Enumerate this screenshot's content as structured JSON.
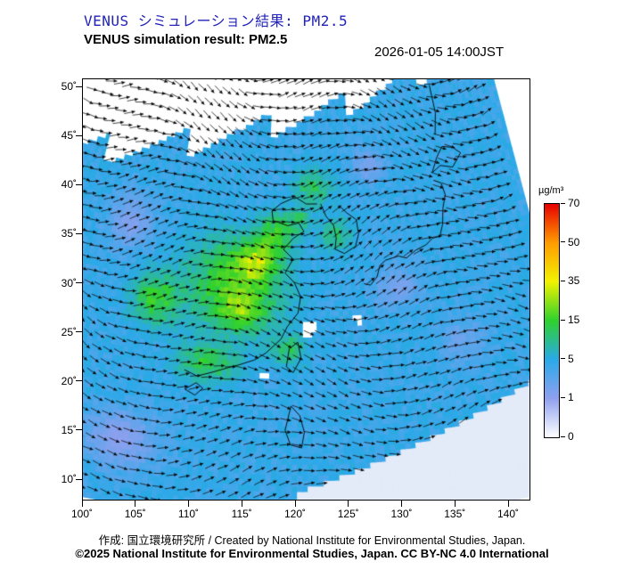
{
  "header": {
    "title_jp": "VENUS シミュレーション結果: PM2.5",
    "title_en": "VENUS simulation result: PM2.5",
    "timestamp": "2026-01-05 14:00JST"
  },
  "footer": {
    "credit_line1": "作成:  国立環境研究所 / Created by National Institute for Environmental Studies, Japan.",
    "credit_line2": "©2025 National Institute for Environmental Studies, Japan. CC BY-NC 4.0 International"
  },
  "colorbar": {
    "unit_label": "µg/m³",
    "tick_labels": [
      "0",
      "1",
      "5",
      "15",
      "35",
      "50",
      "70"
    ],
    "stops": [
      {
        "value": 0,
        "color": "#ffffff"
      },
      {
        "value": 1,
        "color": "#8fa0ef"
      },
      {
        "value": 5,
        "color": "#2aa9e8"
      },
      {
        "value": 15,
        "color": "#2ed12e"
      },
      {
        "value": 35,
        "color": "#f2f200"
      },
      {
        "value": 50,
        "color": "#ff9c00"
      },
      {
        "value": 70,
        "color": "#e60000"
      }
    ]
  },
  "axes": {
    "lat_tick_labels": [
      "50˚",
      "45˚",
      "40˚",
      "35˚",
      "30˚",
      "25˚",
      "20˚",
      "15˚",
      "10˚"
    ],
    "lon_tick_labels": [
      "100˚",
      "105˚",
      "110˚",
      "115˚",
      "120˚",
      "125˚",
      "130˚",
      "135˚",
      "140˚"
    ]
  },
  "chart_data": {
    "type": "heatmap",
    "title": "VENUS simulation result: PM2.5",
    "variable": "PM2.5 surface concentration",
    "units": "µg/m³",
    "valid_time": "2026-01-05 14:00JST",
    "lon_range": [
      100,
      145
    ],
    "lat_range": [
      10,
      50
    ],
    "projection": "lambert_conformal_conic",
    "colorscale_values": [
      0,
      1,
      5,
      15,
      35,
      50,
      70
    ],
    "field": {
      "background": 4.5,
      "plumes": [
        [
          113.5,
          31,
          5.5,
          4.5,
          13
        ],
        [
          116,
          33.5,
          2.2,
          1.8,
          20
        ],
        [
          114.5,
          28.5,
          2.2,
          1.8,
          13
        ],
        [
          118.5,
          36.5,
          2.2,
          1.8,
          11
        ],
        [
          104,
          28.5,
          2.6,
          2.4,
          11
        ],
        [
          111,
          22.5,
          3.2,
          1.8,
          9
        ],
        [
          120.5,
          24.5,
          1.8,
          1.5,
          7
        ],
        [
          123.5,
          41.5,
          2.6,
          1.8,
          7
        ],
        [
          126.5,
          36.5,
          2.0,
          1.6,
          6
        ],
        [
          121.5,
          38.2,
          1.6,
          1.2,
          7
        ],
        [
          102.5,
          13.5,
          4,
          3,
          -3.3
        ],
        [
          134,
          30.5,
          3,
          2.2,
          -2.6
        ],
        [
          131.5,
          43.5,
          2.4,
          1.8,
          -2.8
        ],
        [
          141,
          24,
          3,
          2.5,
          -2
        ],
        [
          99,
          36,
          3,
          3,
          -3
        ]
      ],
      "clear_spots": [
        [
          122.8,
          26.6,
          0.9
        ],
        [
          117.6,
          21.6,
          0.6
        ],
        [
          128.8,
          27.4,
          0.5
        ]
      ],
      "no_data_above": "lat > 44 + 0.2*(lon-99), jagged blocky edge (white)",
      "no_data_corner": "lat < 9.2 + 0.34*(lon-121) for lon > 121 (pale, no vectors)"
    },
    "wind": {
      "overlay": "arrows",
      "direction": "predominantly westerly, meandering northeastward",
      "grid_step_deg": 1.3,
      "params": {
        "a1": 0.4,
        "k1": 0.22,
        "k2": 0.12,
        "a2": 0.18,
        "k3": 0.25,
        "jitter": 0.25
      }
    },
    "coastlines": [
      [
        [
          108.5,
          21.5
        ],
        [
          110,
          21
        ],
        [
          111.8,
          21.6
        ],
        [
          113.5,
          22.2
        ],
        [
          114.8,
          22.6
        ],
        [
          116.5,
          23.2
        ],
        [
          117.8,
          24
        ],
        [
          119.5,
          25.5
        ],
        [
          120.2,
          26.8
        ],
        [
          121.5,
          28.3
        ],
        [
          121.8,
          30
        ],
        [
          121,
          31.5
        ],
        [
          119.8,
          32.5
        ],
        [
          120.8,
          34
        ],
        [
          119.5,
          35
        ],
        [
          120.8,
          36.2
        ],
        [
          122.2,
          36.9
        ],
        [
          121.5,
          37.8
        ],
        [
          120,
          37.5
        ],
        [
          118,
          38
        ],
        [
          117.8,
          39
        ],
        [
          119,
          39.8
        ],
        [
          121,
          40.5
        ],
        [
          122.5,
          39.8
        ],
        [
          124,
          39.8
        ]
      ],
      [
        [
          124.5,
          39.8
        ],
        [
          125.2,
          38.5
        ],
        [
          126.2,
          37.5
        ],
        [
          126.5,
          36.2
        ],
        [
          126.3,
          35
        ],
        [
          127.5,
          34.5
        ],
        [
          129,
          35.2
        ],
        [
          129.5,
          36.5
        ],
        [
          129.3,
          38
        ],
        [
          128,
          38.8
        ],
        [
          127,
          39.6
        ]
      ],
      [
        [
          129.8,
          31.2
        ],
        [
          130.6,
          31
        ],
        [
          131.5,
          31.8
        ],
        [
          132,
          33
        ],
        [
          132.8,
          33.5
        ],
        [
          134.5,
          33.8
        ],
        [
          135.5,
          33.5
        ],
        [
          136.8,
          34.2
        ],
        [
          138.2,
          34.6
        ],
        [
          139.2,
          35.2
        ],
        [
          140.2,
          35.3
        ],
        [
          140.8,
          36.5
        ],
        [
          141.2,
          38.2
        ],
        [
          141.8,
          39.5
        ],
        [
          141.5,
          40.8
        ],
        [
          140.5,
          41.2
        ]
      ],
      [
        [
          140.5,
          42
        ],
        [
          141.8,
          42.6
        ],
        [
          143.5,
          42.2
        ],
        [
          145,
          43.5
        ],
        [
          144,
          44.2
        ],
        [
          142.5,
          44.5
        ],
        [
          141.5,
          43.5
        ],
        [
          140.5,
          42
        ]
      ],
      [
        [
          120.2,
          22.6
        ],
        [
          121,
          22
        ],
        [
          121.9,
          23.5
        ],
        [
          121.5,
          25.2
        ],
        [
          120.5,
          24.5
        ],
        [
          120.2,
          22.6
        ]
      ],
      [
        [
          108.8,
          19.5
        ],
        [
          110,
          19
        ],
        [
          110.8,
          19.8
        ],
        [
          110,
          20.3
        ],
        [
          108.8,
          19.5
        ]
      ],
      [
        [
          120.2,
          16
        ],
        [
          120.8,
          14.5
        ],
        [
          122,
          14.2
        ],
        [
          122.3,
          15.8
        ],
        [
          121.8,
          17.5
        ],
        [
          120.8,
          18.5
        ],
        [
          120.2,
          16
        ]
      ],
      [
        [
          141.8,
          45.8
        ],
        [
          142.4,
          48
        ],
        [
          142.2,
          50.8
        ]
      ]
    ]
  }
}
